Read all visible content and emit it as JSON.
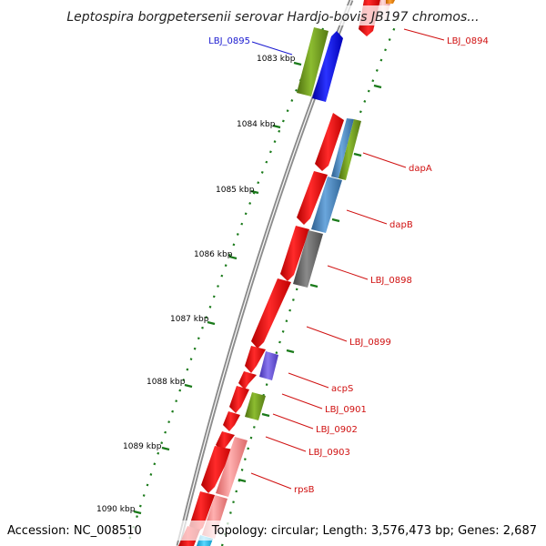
{
  "title": "Leptospira borgpetersenii serovar Hardjo-bovis JB197 chromos...",
  "footer": {
    "accession": "Accession: NC_008510",
    "summary": "Topology: circular; Length: 3,576,473 bp; Genes: 2,687"
  },
  "colors": {
    "backbone": "#8c8c8c",
    "tick": "#1a7a1a",
    "forward_label": "#1a1ad0",
    "reverse_label": "#d01010",
    "red_gene": "#ee1111",
    "olive_gene": "#6f9a20",
    "blue_gene": "#0b10e6",
    "steel_gene": "#4a88c0",
    "gray_gene": "#6a6a6a",
    "purple_gene": "#6a55d8",
    "pink_gene": "#f08a8a",
    "cyan_gene": "#1cc0f0",
    "orange_gene": "#f08a10"
  },
  "ticks": [
    {
      "label": "1083 kbp"
    },
    {
      "label": "1084 kbp"
    },
    {
      "label": "1085 kbp"
    },
    {
      "label": "1086 kbp"
    },
    {
      "label": "1087 kbp"
    },
    {
      "label": "1088 kbp"
    },
    {
      "label": "1089 kbp"
    },
    {
      "label": "1090 kbp"
    }
  ],
  "gene_labels": [
    {
      "name": "LBJ_0895",
      "strand": "forward"
    },
    {
      "name": "LBJ_0894",
      "strand": "reverse"
    },
    {
      "name": "dapA",
      "strand": "reverse"
    },
    {
      "name": "dapB",
      "strand": "reverse"
    },
    {
      "name": "LBJ_0898",
      "strand": "reverse"
    },
    {
      "name": "LBJ_0899",
      "strand": "reverse"
    },
    {
      "name": "acpS",
      "strand": "reverse"
    },
    {
      "name": "LBJ_0901",
      "strand": "reverse"
    },
    {
      "name": "LBJ_0902",
      "strand": "reverse"
    },
    {
      "name": "LBJ_0903",
      "strand": "reverse"
    },
    {
      "name": "rpsB",
      "strand": "reverse"
    }
  ]
}
